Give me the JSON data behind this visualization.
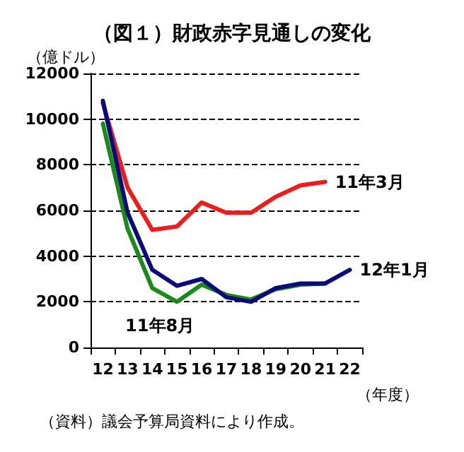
{
  "chart_data": {
    "type": "line",
    "title": "（図１）財政赤字見通しの変化",
    "ylabel": "（億ドル）",
    "xlabel": "（年度）",
    "annotations": [
      "（資料）議会予算局資料により作成。"
    ],
    "categories": [
      "12",
      "13",
      "14",
      "15",
      "16",
      "17",
      "18",
      "19",
      "20",
      "21",
      "22"
    ],
    "series": [
      {
        "name": "11年3月",
        "color": "#ee1c1c",
        "values": [
          10700,
          7000,
          5150,
          5300,
          6350,
          5900,
          5900,
          6600,
          7100,
          7250,
          null
        ]
      },
      {
        "name": "11年8月",
        "color": "#1a8a1a",
        "values": [
          9800,
          5200,
          2600,
          2000,
          2750,
          2300,
          2100,
          2550,
          2750,
          2800,
          null
        ]
      },
      {
        "name": "12年1月",
        "color": "#0a0a7a",
        "values": [
          10800,
          5900,
          3400,
          2700,
          3000,
          2200,
          2000,
          2600,
          2800,
          2800,
          3400
        ]
      }
    ],
    "ylim": [
      0,
      12000
    ],
    "yticks": [
      0,
      2000,
      4000,
      6000,
      8000,
      10000,
      12000
    ],
    "grid": "y",
    "legend": false,
    "marker": "none",
    "line_style": "solid"
  }
}
